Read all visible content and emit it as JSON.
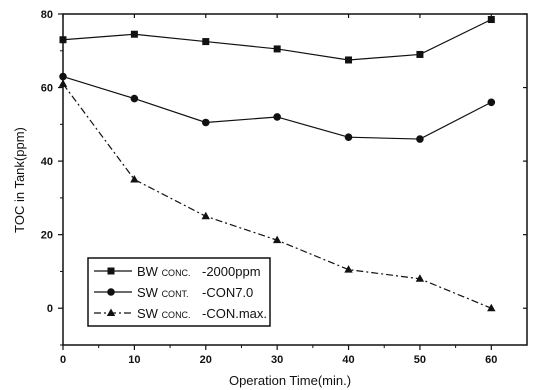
{
  "chart_data": {
    "type": "line",
    "xlabel": "Operation Time(min.)",
    "ylabel": "TOC in Tank(ppm)",
    "xlim": [
      0,
      65
    ],
    "ylim": [
      -10,
      80
    ],
    "x_ticks": [
      0,
      10,
      20,
      30,
      40,
      50,
      60
    ],
    "y_ticks": [
      0,
      20,
      40,
      60,
      80
    ],
    "grid": false,
    "legend_position": "bottom-left",
    "series": [
      {
        "name_main": "BW",
        "name_small": "CONC.",
        "name_tail": "-2000ppm",
        "marker": "square",
        "line_style": "solid",
        "x": [
          0,
          10,
          20,
          30,
          40,
          50,
          60
        ],
        "values": [
          73,
          74.5,
          72.5,
          70.5,
          67.5,
          69,
          78.5
        ]
      },
      {
        "name_main": "SW",
        "name_small": "CONT.",
        "name_tail": "-CON7.0",
        "marker": "circle",
        "line_style": "solid",
        "x": [
          0,
          10,
          20,
          30,
          40,
          50,
          60
        ],
        "values": [
          63,
          57,
          50.5,
          52,
          46.5,
          46,
          56
        ]
      },
      {
        "name_main": "SW",
        "name_small": "CONC.",
        "name_tail": "-CON.max.",
        "marker": "triangle",
        "line_style": "dashdot",
        "x": [
          0,
          10,
          20,
          30,
          40,
          50,
          60
        ],
        "values": [
          61,
          35,
          25,
          18.5,
          10.5,
          8,
          0
        ]
      }
    ]
  }
}
